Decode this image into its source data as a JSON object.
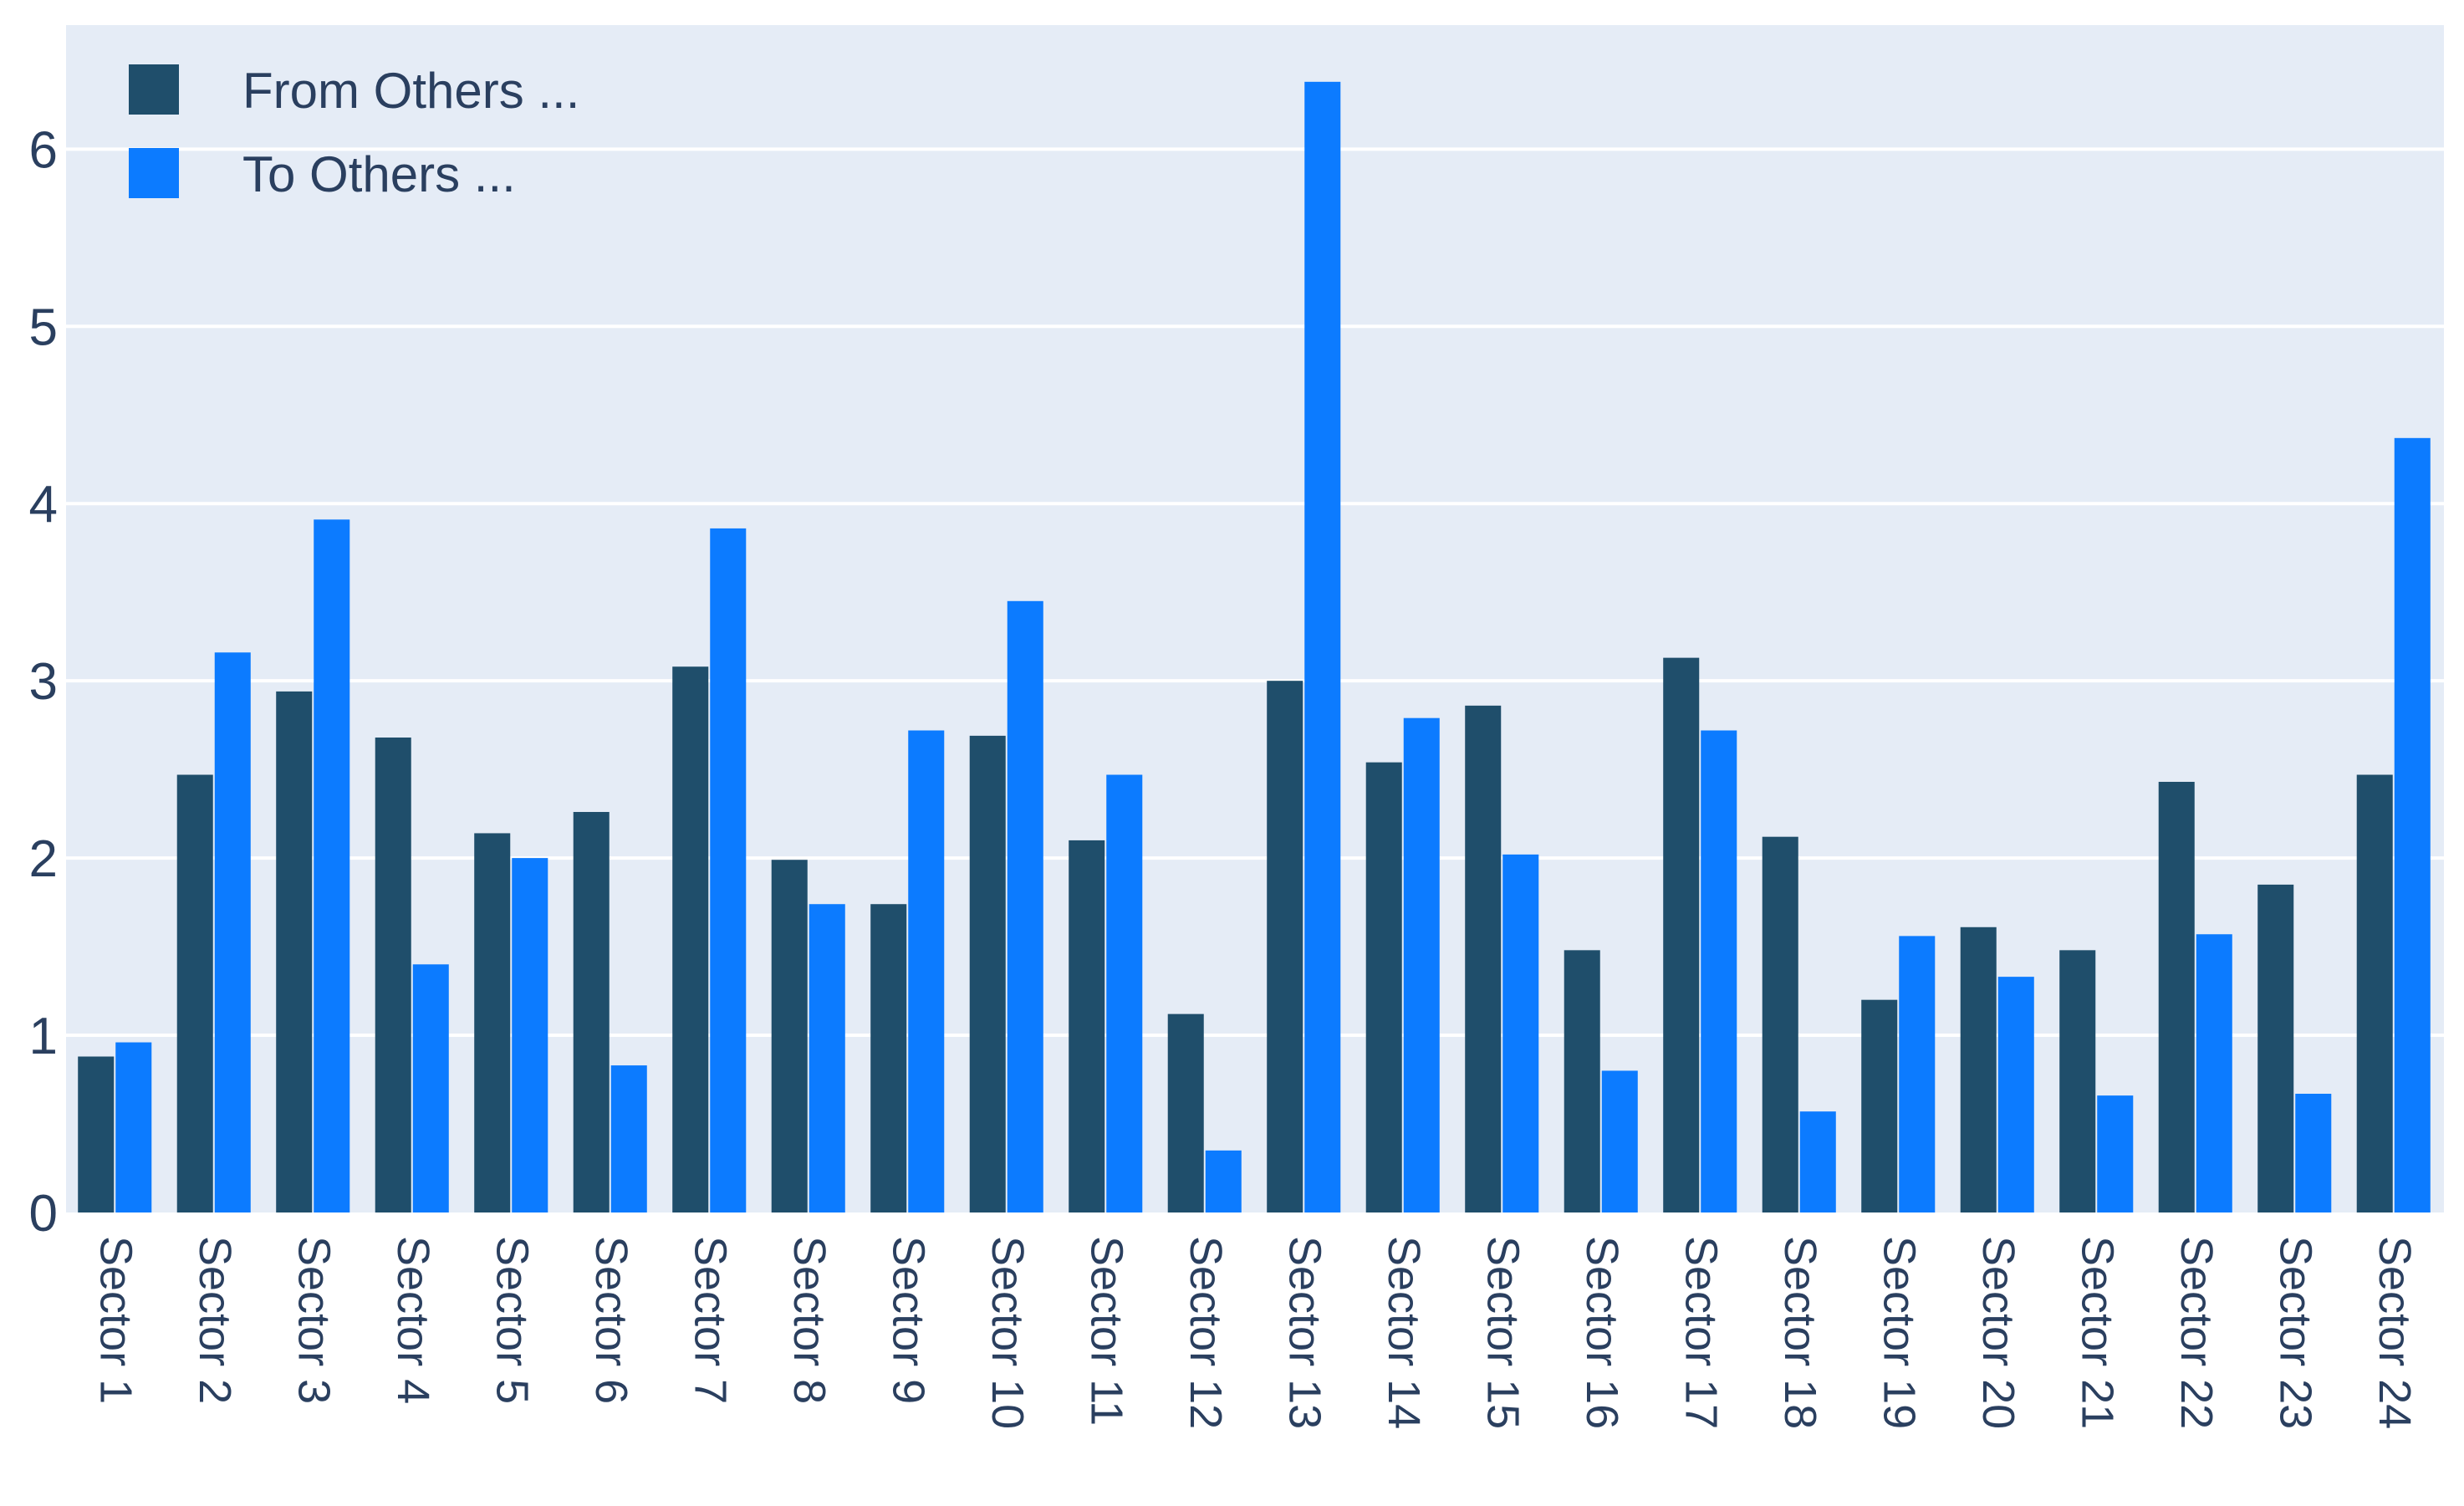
{
  "chart_data": {
    "type": "bar",
    "categories": [
      "Sector 1",
      "Sector 2",
      "Sector 3",
      "Sector 4",
      "Sector 5",
      "Sector 6",
      "Sector 7",
      "Sector 8",
      "Sector 9",
      "Sector 10",
      "Sector 11",
      "Sector 12",
      "Sector 13",
      "Sector 14",
      "Sector 15",
      "Sector 16",
      "Sector 17",
      "Sector 18",
      "Sector 19",
      "Sector 20",
      "Sector 21",
      "Sector 22",
      "Sector 23",
      "Sector 24"
    ],
    "series": [
      {
        "name": "From Others ...",
        "color": "#1f4e6b",
        "values": [
          0.88,
          2.47,
          2.94,
          2.68,
          2.14,
          2.26,
          3.08,
          1.99,
          1.74,
          2.69,
          2.1,
          1.12,
          3.0,
          2.54,
          2.86,
          1.48,
          3.13,
          2.12,
          1.2,
          1.61,
          1.48,
          2.43,
          1.85,
          2.47
        ]
      },
      {
        "name": "To Others ...",
        "color": "#0c7bff",
        "values": [
          0.96,
          3.16,
          3.91,
          1.4,
          2.0,
          0.83,
          3.86,
          1.74,
          2.72,
          3.45,
          2.47,
          0.35,
          6.38,
          2.79,
          2.02,
          0.8,
          2.72,
          0.57,
          1.56,
          1.33,
          0.66,
          1.57,
          0.67,
          4.37
        ]
      }
    ],
    "y_ticks": [
      "0",
      "1",
      "2",
      "3",
      "4",
      "5",
      "6"
    ],
    "ylim": [
      0,
      6.7
    ],
    "grid": true,
    "legend_position": "top-left",
    "plot_background": "#e5ecf6",
    "grid_color": "#ffffff",
    "text_color": "#2a3f5f"
  }
}
